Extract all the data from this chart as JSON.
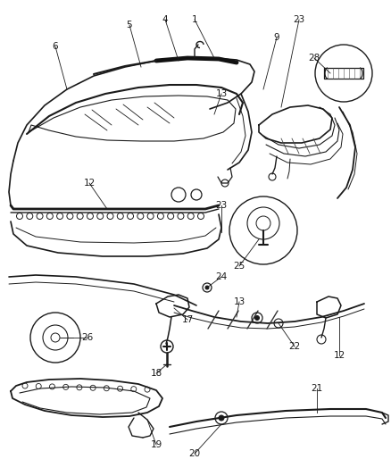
{
  "background_color": "#ffffff",
  "line_color": "#1a1a1a",
  "label_color": "#000000",
  "fig_width": 4.38,
  "fig_height": 5.33,
  "dpi": 100
}
